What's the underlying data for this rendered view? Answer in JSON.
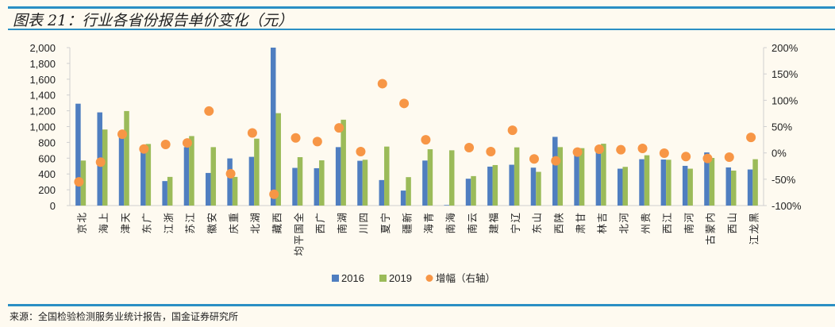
{
  "header": {
    "title": "图表 21：行业各省份报告单价变化（元）"
  },
  "footer": {
    "source": "来源：全国检验检测服务业统计报告，国金证券研究所"
  },
  "chart_data": {
    "type": "bar",
    "title": "图表 21：行业各省份报告单价变化（元）",
    "categories": [
      "北京",
      "上海",
      "天津",
      "广东",
      "浙江",
      "江苏",
      "安徽",
      "重庆",
      "湖北",
      "西藏",
      "全国平均",
      "广西",
      "湖南",
      "四川",
      "宁夏",
      "新疆",
      "青海",
      "海南",
      "云南",
      "福建",
      "辽宁",
      "山东",
      "陕西",
      "甘肃",
      "吉林",
      "河北",
      "贵州",
      "江西",
      "河南",
      "内蒙古",
      "山西",
      "黑龙江"
    ],
    "series": [
      {
        "name": "2016",
        "type": "bar",
        "axis": "left",
        "color": "#4f7ec0",
        "values": [
          1290,
          1180,
          880,
          727,
          310,
          740,
          413,
          597,
          617,
          2000,
          477,
          473,
          740,
          567,
          323,
          190,
          570,
          7,
          340,
          493,
          517,
          480,
          870,
          720,
          743,
          467,
          587,
          583,
          503,
          673,
          483,
          457
        ]
      },
      {
        "name": "2019",
        "type": "bar",
        "axis": "left",
        "color": "#9bbb59",
        "values": [
          570,
          963,
          1197,
          780,
          363,
          880,
          740,
          363,
          847,
          1170,
          613,
          573,
          1087,
          580,
          747,
          360,
          713,
          700,
          373,
          513,
          737,
          427,
          740,
          727,
          783,
          490,
          637,
          580,
          467,
          603,
          443,
          587
        ]
      },
      {
        "name": "增幅（右轴）",
        "type": "scatter",
        "axis": "right",
        "color": "#f79646",
        "unit": "%",
        "values": [
          -55,
          -17.5,
          35.5,
          7.5,
          16,
          19,
          79.5,
          -39.5,
          38,
          -78.5,
          28.5,
          21.5,
          47.5,
          2.5,
          131.5,
          94,
          25,
          null,
          10,
          2.5,
          43,
          -11.5,
          -15,
          1.5,
          7,
          6,
          8.5,
          -0.5,
          -7,
          -10.5,
          -8,
          29.5
        ]
      }
    ],
    "left_axis": {
      "ylim": [
        0,
        2000
      ],
      "ticks": [
        "0",
        "200",
        "400",
        "600",
        "800",
        "1,000",
        "1,200",
        "1,400",
        "1,600",
        "1,800",
        "2,000"
      ]
    },
    "right_axis": {
      "ylim": [
        -100,
        200
      ],
      "ticks": [
        "-100%",
        "-50%",
        "0%",
        "50%",
        "100%",
        "150%",
        "200%"
      ]
    },
    "legend": {
      "position": "bottom",
      "entries": [
        "2016",
        "2019",
        "增幅（右轴）"
      ]
    },
    "grid": false
  }
}
